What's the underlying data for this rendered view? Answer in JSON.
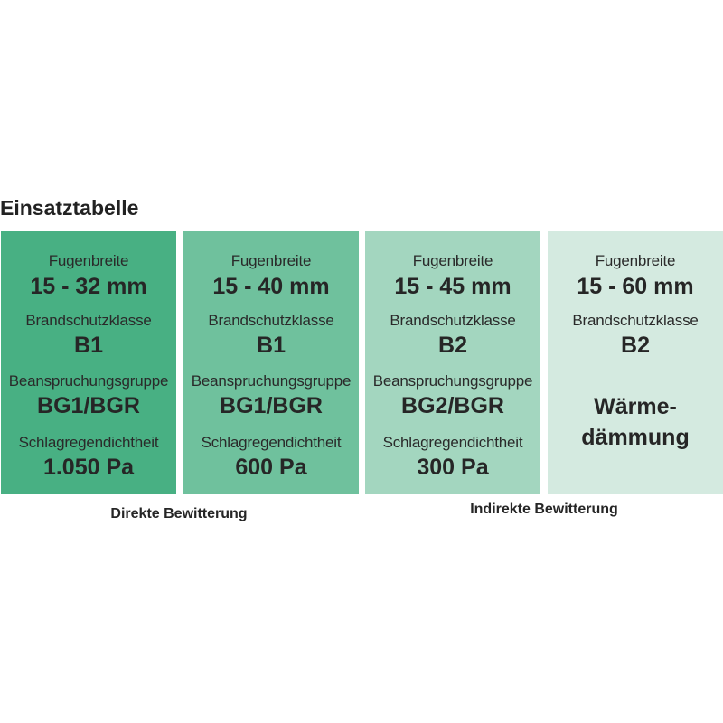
{
  "title": "Einsatztabelle",
  "colors": [
    "#48b083",
    "#6fc19d",
    "#a3d6bf",
    "#d4eae0"
  ],
  "columns": [
    {
      "l1": "Fugenbreite",
      "v1": "15 - 32 mm",
      "l2": "Brandschutzklasse",
      "v2": "B1",
      "l3": "Beanspruchungsgruppe",
      "v3": "BG1/BGR",
      "l4": "Schlagregendichtheit",
      "v4": "1.050 Pa"
    },
    {
      "l1": "Fugenbreite",
      "v1": "15 - 40 mm",
      "l2": "Brandschutzklasse",
      "v2": "B1",
      "l3": "Beanspruchungsgruppe",
      "v3": "BG1/BGR",
      "l4": "Schlagregendichtheit",
      "v4": "600 Pa"
    },
    {
      "l1": "Fugenbreite",
      "v1": "15 - 45 mm",
      "l2": "Brandschutzklasse",
      "v2": "B2",
      "l3": "Beanspruchungsgruppe",
      "v3": "BG2/BGR",
      "l4": "Schlagregendichtheit",
      "v4": "300 Pa"
    },
    {
      "l1": "Fugenbreite",
      "v1": "15 - 60 mm",
      "l2": "Brandschutzklasse",
      "v2": "B2",
      "note1": "Wärme-",
      "note2": "dämmung"
    }
  ],
  "captions": {
    "direct": "Direkte Bewitterung",
    "indirect": "Indirekte Bewitterung"
  }
}
